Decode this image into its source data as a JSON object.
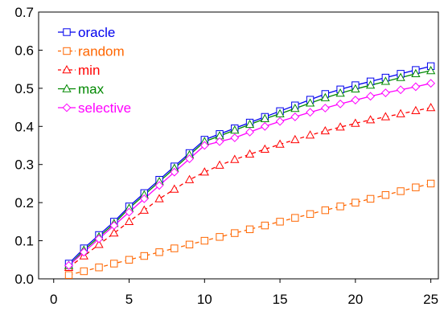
{
  "chart_data": {
    "type": "line",
    "title": "",
    "xlabel": "",
    "ylabel": "",
    "xlim": [
      -1,
      25.5
    ],
    "ylim": [
      0,
      0.7
    ],
    "x_ticks": [
      0,
      5,
      10,
      15,
      20,
      25
    ],
    "x_tick_labels": [
      "0",
      "5",
      "10",
      "15",
      "20",
      "25"
    ],
    "y_ticks": [
      0.0,
      0.1,
      0.2,
      0.3,
      0.4,
      0.5,
      0.6,
      0.7
    ],
    "y_tick_labels": [
      "0.0",
      "0.1",
      "0.2",
      "0.3",
      "0.4",
      "0.5",
      "0.6",
      "0.7"
    ],
    "grid": false,
    "legend_position": "top-left",
    "x": [
      1,
      2,
      3,
      4,
      5,
      6,
      7,
      8,
      9,
      10,
      11,
      12,
      13,
      14,
      15,
      16,
      17,
      18,
      19,
      20,
      21,
      22,
      23,
      24,
      25
    ],
    "series": [
      {
        "name": "oracle",
        "color": "#0000ee",
        "marker": "square",
        "dashed": false,
        "values": [
          0.04,
          0.08,
          0.115,
          0.15,
          0.19,
          0.225,
          0.26,
          0.295,
          0.33,
          0.365,
          0.38,
          0.395,
          0.41,
          0.425,
          0.44,
          0.455,
          0.47,
          0.485,
          0.497,
          0.508,
          0.518,
          0.528,
          0.538,
          0.548,
          0.558
        ]
      },
      {
        "name": "random",
        "color": "#ff6600",
        "marker": "square",
        "dashed": true,
        "values": [
          0.01,
          0.02,
          0.03,
          0.04,
          0.05,
          0.06,
          0.07,
          0.08,
          0.09,
          0.1,
          0.11,
          0.12,
          0.13,
          0.14,
          0.15,
          0.16,
          0.17,
          0.18,
          0.19,
          0.2,
          0.21,
          0.22,
          0.23,
          0.24,
          0.25
        ]
      },
      {
        "name": "min",
        "color": "#ff0000",
        "marker": "triangle",
        "dashed": true,
        "values": [
          0.03,
          0.06,
          0.09,
          0.12,
          0.15,
          0.18,
          0.21,
          0.235,
          0.26,
          0.28,
          0.298,
          0.313,
          0.327,
          0.34,
          0.353,
          0.365,
          0.377,
          0.388,
          0.398,
          0.408,
          0.417,
          0.425,
          0.433,
          0.441,
          0.449
        ]
      },
      {
        "name": "max",
        "color": "#008800",
        "marker": "triangle",
        "dashed": false,
        "values": [
          0.035,
          0.075,
          0.11,
          0.145,
          0.185,
          0.22,
          0.255,
          0.29,
          0.325,
          0.36,
          0.375,
          0.39,
          0.405,
          0.42,
          0.433,
          0.447,
          0.461,
          0.475,
          0.487,
          0.498,
          0.508,
          0.518,
          0.528,
          0.538,
          0.546
        ]
      },
      {
        "name": "selective",
        "color": "#ff00ff",
        "marker": "diamond",
        "dashed": false,
        "values": [
          0.035,
          0.07,
          0.105,
          0.14,
          0.175,
          0.21,
          0.245,
          0.28,
          0.315,
          0.35,
          0.36,
          0.37,
          0.385,
          0.4,
          0.413,
          0.425,
          0.437,
          0.448,
          0.459,
          0.469,
          0.479,
          0.488,
          0.496,
          0.504,
          0.513
        ]
      }
    ]
  }
}
